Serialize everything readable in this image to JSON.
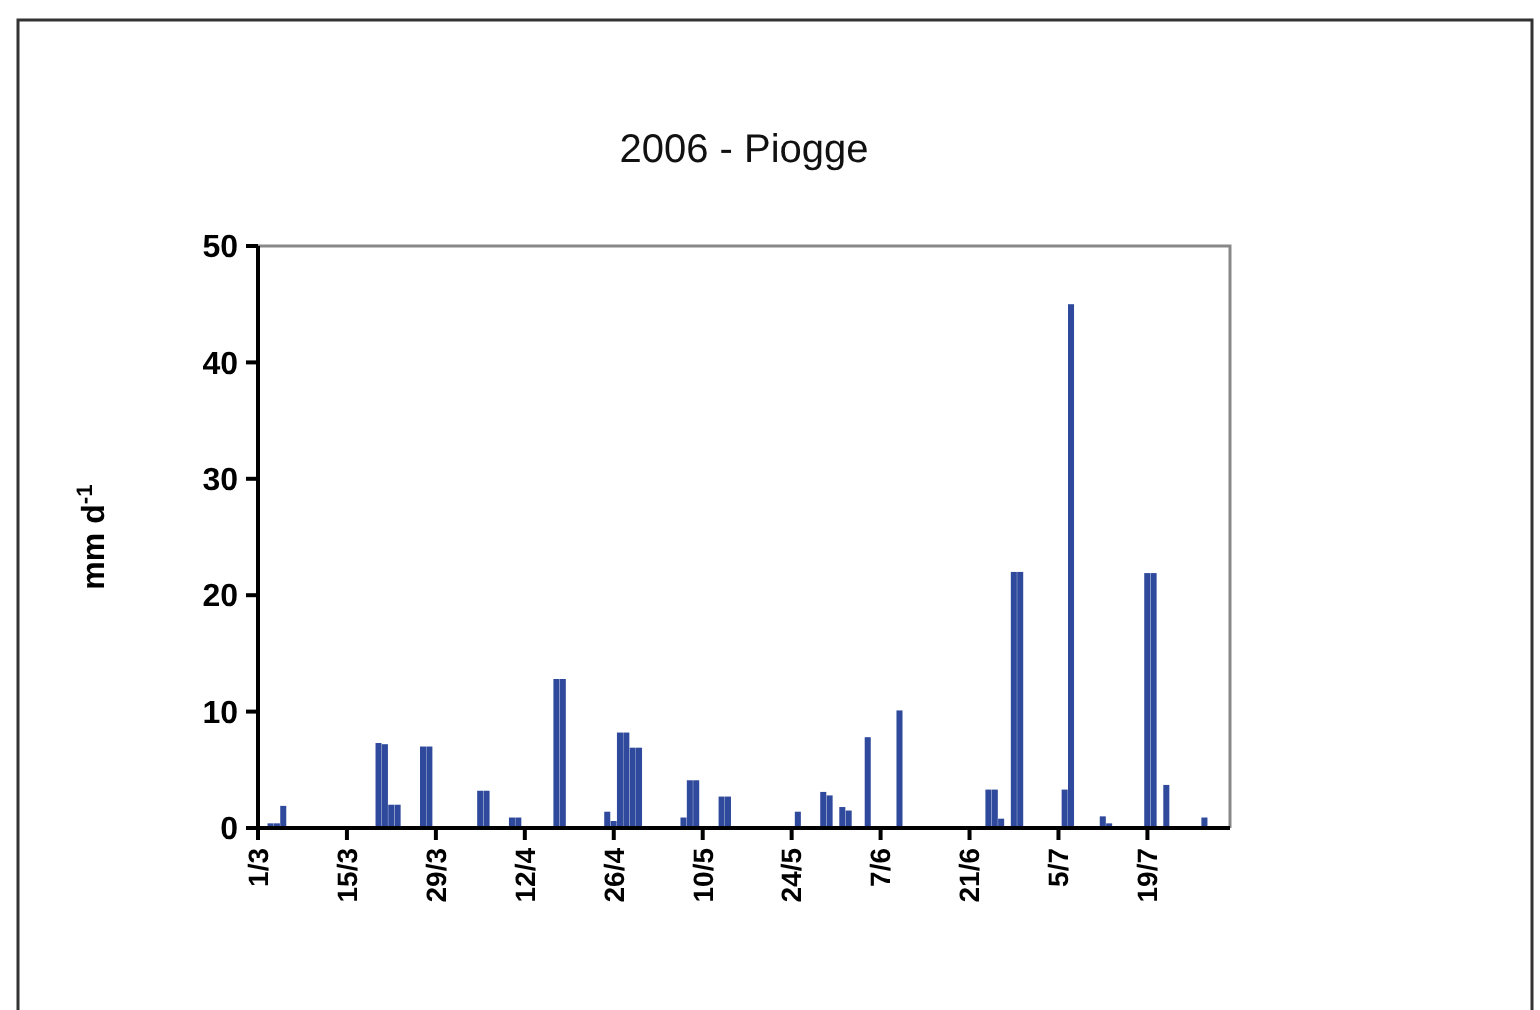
{
  "chart_data": {
    "type": "bar",
    "title": "2006 - Piogge",
    "ylabel": "mm d$^{-1}$",
    "color": "#2f4a9c",
    "x": [
      "--03-03",
      "--03-04",
      "--03-05",
      "--03-20",
      "--03-21",
      "--03-22",
      "--03-23",
      "--03-27",
      "--03-28",
      "--04-05",
      "--04-06",
      "--04-10",
      "--04-11",
      "--04-17",
      "--04-18",
      "--04-25",
      "--04-26",
      "--04-27",
      "--04-28",
      "--04-29",
      "--04-30",
      "--05-07",
      "--05-08",
      "--05-09",
      "--05-13",
      "--05-14",
      "--05-25",
      "--05-29",
      "--05-30",
      "--06-01",
      "--06-02",
      "--06-05",
      "--06-10",
      "--06-24",
      "--06-25",
      "--06-26",
      "--06-28",
      "--06-29",
      "--07-06",
      "--07-07",
      "--07-12",
      "--07-13",
      "--07-19",
      "--07-20",
      "--07-22",
      "--07-28"
    ],
    "values": [
      0.4,
      0.4,
      1.9,
      7.3,
      7.2,
      2,
      2,
      7,
      7,
      3.2,
      3.2,
      0.9,
      0.9,
      12.8,
      12.8,
      1.4,
      0.6,
      8.2,
      8.2,
      6.9,
      6.9,
      0.9,
      4.1,
      4.1,
      2.7,
      2.7,
      1.4,
      3.1,
      2.8,
      1.8,
      1.5,
      7.8,
      10.1,
      3.3,
      3.3,
      0.8,
      22,
      22,
      3.3,
      45,
      1,
      0.4,
      21.9,
      21.9,
      3.7,
      0.9
    ],
    "xlim": [
      "--03-01",
      "--08-01"
    ],
    "xticks": [
      {
        "value": "--03-01",
        "label": "1/3"
      },
      {
        "value": "--03-15",
        "label": "15/3"
      },
      {
        "value": "--03-29",
        "label": "29/3"
      },
      {
        "value": "--04-12",
        "label": "12/4"
      },
      {
        "value": "--04-26",
        "label": "26/4"
      },
      {
        "value": "--05-10",
        "label": "10/5"
      },
      {
        "value": "--05-24",
        "label": "24/5"
      },
      {
        "value": "--06-07",
        "label": "7/6"
      },
      {
        "value": "--06-21",
        "label": "21/6"
      },
      {
        "value": "--07-05",
        "label": "5/7"
      },
      {
        "value": "--07-19",
        "label": "19/7"
      }
    ],
    "ylim": [
      0,
      50
    ],
    "yticks": [
      0,
      10,
      20,
      30,
      40,
      50
    ],
    "grid": false
  }
}
